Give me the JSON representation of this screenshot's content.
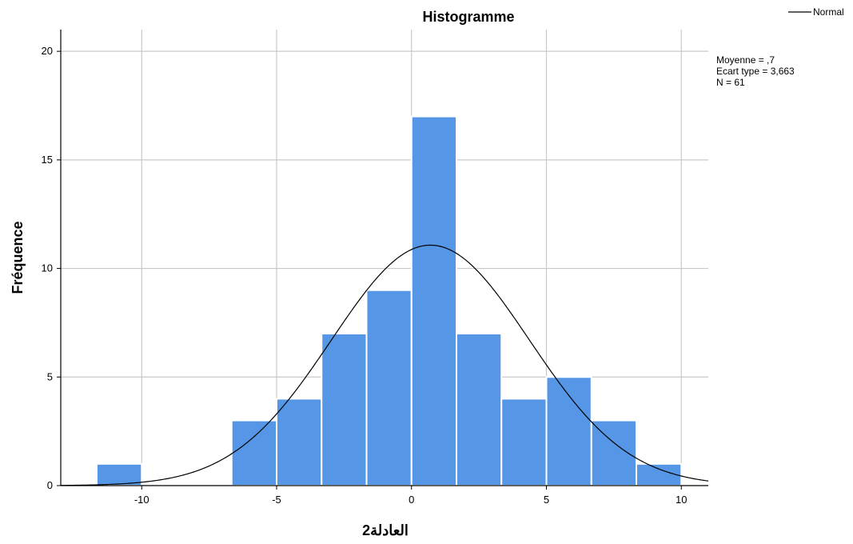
{
  "chart_data": {
    "type": "bar",
    "title": "Histogramme",
    "xlabel": "العادلة2",
    "ylabel": "Fréquence",
    "xlim": [
      -13,
      11
    ],
    "ylim": [
      0,
      21
    ],
    "grid": true,
    "x_ticks": [
      -10,
      -5,
      0,
      5,
      10
    ],
    "x_tick_labels": [
      "-10",
      "-5",
      "0",
      "5",
      "10"
    ],
    "y_ticks": [
      0,
      5,
      10,
      15,
      20
    ],
    "y_tick_labels": [
      "0",
      "5",
      "10",
      "15",
      "20"
    ],
    "bar_color": "#5596e6",
    "bins": [
      {
        "start": -11.6667,
        "end": -10.0,
        "count": 1
      },
      {
        "start": -10.0,
        "end": -8.3333,
        "count": 0
      },
      {
        "start": -8.3333,
        "end": -6.6667,
        "count": 0
      },
      {
        "start": -6.6667,
        "end": -5.0,
        "count": 3
      },
      {
        "start": -5.0,
        "end": -3.3333,
        "count": 4
      },
      {
        "start": -3.3333,
        "end": -1.6667,
        "count": 7
      },
      {
        "start": -1.6667,
        "end": 0.0,
        "count": 9
      },
      {
        "start": 0.0,
        "end": 1.6667,
        "count": 17
      },
      {
        "start": 1.6667,
        "end": 3.3333,
        "count": 7
      },
      {
        "start": 3.3333,
        "end": 5.0,
        "count": 4
      },
      {
        "start": 5.0,
        "end": 6.6667,
        "count": 5
      },
      {
        "start": 6.6667,
        "end": 8.3333,
        "count": 3
      },
      {
        "start": 8.3333,
        "end": 10.0,
        "count": 1
      }
    ],
    "normal_curve": {
      "mean": 0.7,
      "sd": 3.663,
      "n": 61,
      "bin_width": 1.6667,
      "color": "#000000"
    },
    "legend": {
      "entries": [
        {
          "label": "Normal",
          "color": "#000000"
        }
      ],
      "placement": "top-right"
    },
    "stats": {
      "lines": [
        "Moyenne = ,7",
        "Ecart type = 3,663",
        "N = 61"
      ]
    }
  }
}
